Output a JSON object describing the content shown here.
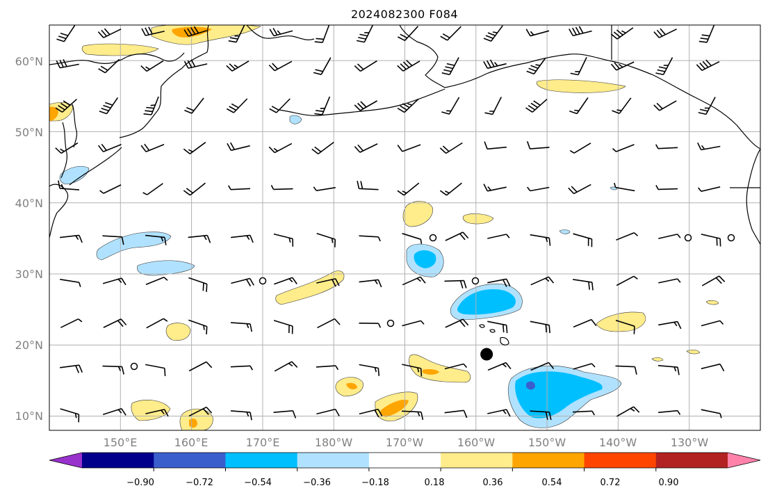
{
  "title": "2024082300 F084",
  "map": {
    "lat_labels": [
      "60°N",
      "50°N",
      "40°N",
      "30°N",
      "20°N",
      "10°N"
    ],
    "lon_labels": [
      "150°E",
      "160°E",
      "170°E",
      "180°W",
      "170°W",
      "160°W",
      "150°W",
      "140°W",
      "130°W"
    ],
    "lon_range": [
      140,
      240
    ],
    "lat_range": [
      8,
      65
    ],
    "grid": true,
    "marker": {
      "name": "station-marker",
      "lon": 201.5,
      "lat": 18.7
    }
  },
  "colorbar": {
    "tick_labels": [
      "−0.90",
      "−0.72",
      "−0.54",
      "−0.36",
      "−0.18",
      "0.18",
      "0.36",
      "0.54",
      "0.72",
      "0.90"
    ],
    "levels": [
      -0.9,
      -0.72,
      -0.54,
      -0.36,
      -0.18,
      0.18,
      0.36,
      0.54,
      0.72,
      0.9
    ],
    "colors": [
      "#9932cc",
      "#00008b",
      "#3a5fcd",
      "#00bfff",
      "#b0e2ff",
      "#ffffff",
      "#ffec8b",
      "#ffa500",
      "#ff4500",
      "#b22222",
      "#ff82ab"
    ],
    "extend": "both"
  }
}
